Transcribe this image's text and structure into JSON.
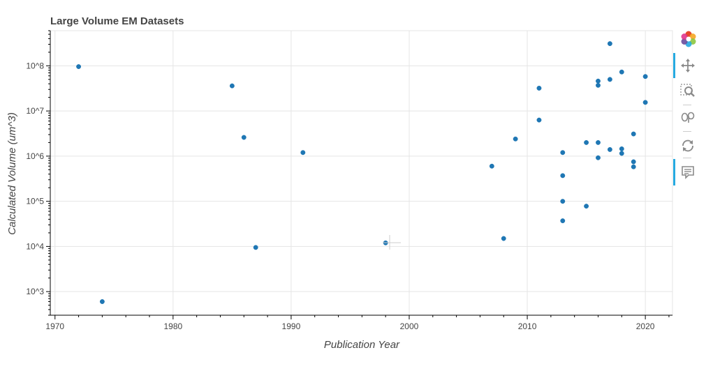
{
  "chart_data": {
    "type": "scatter",
    "title": "Large Volume EM Datasets",
    "xlabel": "Publication Year",
    "ylabel": "Calculated Volume (um^3)",
    "xlim": [
      1969.6,
      2022.3
    ],
    "ylim": [
      300,
      600000000
    ],
    "y_scale": "log",
    "grid": true,
    "marker_color": "#1f77b4",
    "x_ticks": [
      1970,
      1980,
      1990,
      2000,
      2010,
      2020
    ],
    "x_tick_labels": [
      "1970",
      "1980",
      "1990",
      "2000",
      "2010",
      "2020"
    ],
    "y_ticks": [
      1000,
      10000,
      100000,
      1000000,
      10000000,
      100000000
    ],
    "y_tick_labels": [
      "10^3",
      "10^4",
      "10^5",
      "10^6",
      "10^7",
      "10^8"
    ],
    "points": [
      {
        "x": 1972,
        "y": 96000000
      },
      {
        "x": 1974,
        "y": 600
      },
      {
        "x": 1985,
        "y": 36000000
      },
      {
        "x": 1986,
        "y": 2600000
      },
      {
        "x": 1987,
        "y": 9500
      },
      {
        "x": 1991,
        "y": 1200000
      },
      {
        "x": 1998,
        "y": 12000
      },
      {
        "x": 2007,
        "y": 600000
      },
      {
        "x": 2008,
        "y": 15000
      },
      {
        "x": 2009,
        "y": 2400000
      },
      {
        "x": 2011,
        "y": 32000000
      },
      {
        "x": 2011,
        "y": 6300000
      },
      {
        "x": 2013,
        "y": 1200000
      },
      {
        "x": 2013,
        "y": 370000
      },
      {
        "x": 2013,
        "y": 100000
      },
      {
        "x": 2013,
        "y": 37000
      },
      {
        "x": 2015,
        "y": 2000000
      },
      {
        "x": 2015,
        "y": 78000
      },
      {
        "x": 2016,
        "y": 46000000
      },
      {
        "x": 2016,
        "y": 37000000
      },
      {
        "x": 2016,
        "y": 2000000
      },
      {
        "x": 2016,
        "y": 920000
      },
      {
        "x": 2017,
        "y": 310000000
      },
      {
        "x": 2017,
        "y": 50000000
      },
      {
        "x": 2017,
        "y": 1400000
      },
      {
        "x": 2018,
        "y": 73000000
      },
      {
        "x": 2018,
        "y": 1450000
      },
      {
        "x": 2018,
        "y": 1150000
      },
      {
        "x": 2019,
        "y": 3100000
      },
      {
        "x": 2019,
        "y": 750000
      },
      {
        "x": 2019,
        "y": 580000
      },
      {
        "x": 2020,
        "y": 58000000
      },
      {
        "x": 2020,
        "y": 15500000
      }
    ]
  },
  "toolbar": {
    "tools": [
      {
        "name": "bokeh-logo-icon",
        "active": false
      },
      {
        "name": "pan-icon",
        "active": true
      },
      {
        "name": "box-zoom-icon",
        "active": false
      },
      {
        "name": "save-icon",
        "active": false
      },
      {
        "name": "reset-icon",
        "active": false
      },
      {
        "name": "hover-icon",
        "active": true
      }
    ]
  }
}
